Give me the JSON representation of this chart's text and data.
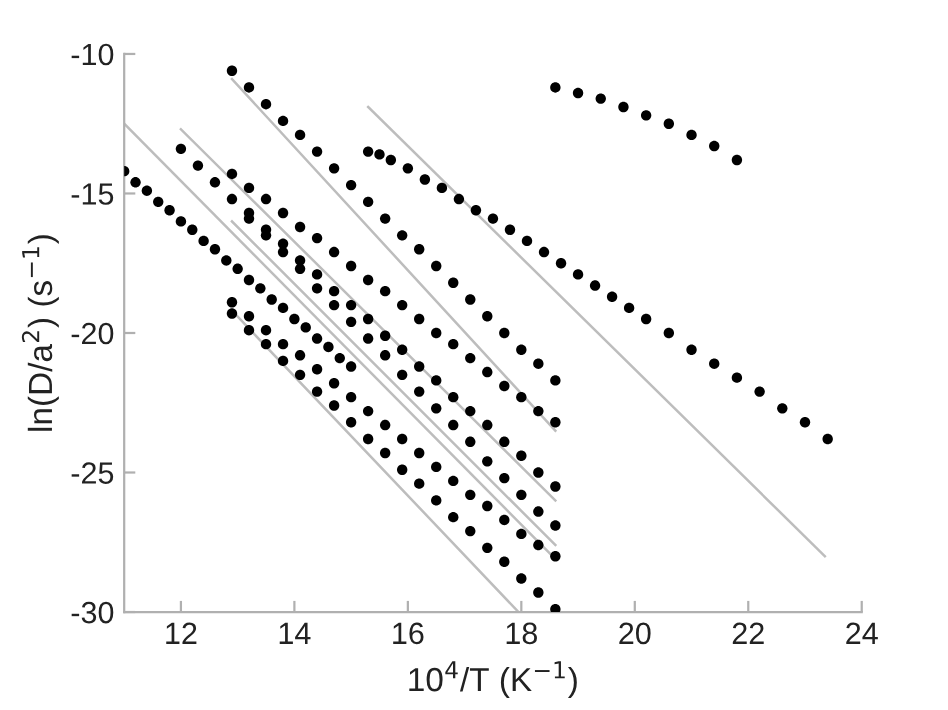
{
  "chart_data": {
    "type": "scatter",
    "xlabel": "10$^{4}$/T (K$^{−1}$)",
    "ylabel": "ln(D/a$^{2}$) (s$^{−1}$)",
    "xlim": [
      11,
      24
    ],
    "ylim": [
      -30,
      -10
    ],
    "xticks": [
      12,
      14,
      16,
      18,
      20,
      22,
      24
    ],
    "yticks": [
      -30,
      -25,
      -20,
      -15,
      -10
    ],
    "grid": false,
    "marker": "circle",
    "series": [
      {
        "type": "line",
        "marker": "none",
        "color": "#bdbdbd",
        "x": [
          11,
          18.6
        ],
        "values": [
          -12.5,
          -28.1
        ]
      },
      {
        "type": "line",
        "marker": "none",
        "color": "#bdbdbd",
        "x": [
          12,
          18.6
        ],
        "values": [
          -12.7,
          -26.0
        ]
      },
      {
        "type": "line",
        "marker": "none",
        "color": "#bdbdbd",
        "x": [
          12.9,
          18.6
        ],
        "values": [
          -10.9,
          -23.5
        ]
      },
      {
        "type": "line",
        "marker": "none",
        "color": "#bdbdbd",
        "x": [
          15.3,
          23.35
        ],
        "values": [
          -11.9,
          -28.0
        ]
      },
      {
        "type": "line",
        "marker": "none",
        "color": "#bdbdbd",
        "x": [
          12.9,
          17.95
        ],
        "values": [
          -19.2,
          -30.0
        ]
      },
      {
        "type": "line",
        "marker": "none",
        "color": "#bdbdbd",
        "x": [
          12.9,
          18.6
        ],
        "values": [
          -16.0,
          -27.6
        ]
      },
      {
        "color": "#000000",
        "x": [
          18.6,
          19.0,
          19.4,
          19.8,
          20.2,
          20.6,
          21.0,
          21.4,
          21.8
        ],
        "values": [
          -11.2,
          -11.4,
          -11.6,
          -11.9,
          -12.2,
          -12.5,
          -12.9,
          -13.3,
          -13.8
        ]
      },
      {
        "color": "#000000",
        "x": [
          15.3,
          15.5,
          15.7,
          16.0,
          16.3,
          16.6,
          16.9,
          17.2,
          17.5,
          17.8,
          18.1,
          18.4,
          18.7,
          19.0,
          19.3,
          19.6,
          19.9,
          20.2,
          20.6,
          21.0,
          21.4,
          21.8,
          22.2,
          22.6,
          23.0,
          23.4
        ],
        "values": [
          -13.5,
          -13.6,
          -13.8,
          -14.1,
          -14.5,
          -14.8,
          -15.2,
          -15.6,
          -15.9,
          -16.3,
          -16.7,
          -17.1,
          -17.5,
          -17.9,
          -18.3,
          -18.7,
          -19.1,
          -19.5,
          -20.0,
          -20.6,
          -21.1,
          -21.6,
          -22.1,
          -22.7,
          -23.2,
          -23.8
        ]
      },
      {
        "color": "#000000",
        "x": [
          12.9,
          13.2,
          13.5,
          13.8,
          14.1,
          14.4,
          14.7,
          15.0,
          15.3,
          15.6,
          15.9,
          16.2,
          16.5,
          16.8,
          17.1,
          17.4,
          17.7,
          18.0,
          18.3,
          18.6
        ],
        "values": [
          -10.6,
          -11.2,
          -11.8,
          -12.4,
          -12.9,
          -13.5,
          -14.1,
          -14.7,
          -15.3,
          -15.9,
          -16.5,
          -17.0,
          -17.6,
          -18.2,
          -18.8,
          -19.4,
          -20.0,
          -20.6,
          -21.1,
          -21.7
        ]
      },
      {
        "color": "#000000",
        "x": [
          12.9,
          13.2,
          13.5,
          13.8,
          14.1,
          14.4,
          14.7,
          15.0,
          15.3,
          15.6,
          15.9,
          16.2,
          16.5,
          16.8,
          17.1,
          17.4,
          17.7,
          18.0,
          18.3,
          18.6
        ],
        "values": [
          -14.3,
          -14.8,
          -15.2,
          -15.7,
          -16.2,
          -16.6,
          -17.1,
          -17.6,
          -18.1,
          -18.5,
          -19.0,
          -19.5,
          -20.0,
          -20.4,
          -20.9,
          -21.4,
          -21.9,
          -22.3,
          -22.8,
          -23.2
        ]
      },
      {
        "color": "#000000",
        "x": [
          12.9,
          13.2,
          13.5,
          13.8,
          14.1,
          14.4,
          14.7,
          15.0,
          15.3,
          15.6,
          15.9,
          16.2,
          16.5,
          16.8,
          17.1,
          17.4,
          17.7,
          18.0,
          18.3,
          18.6
        ],
        "values": [
          -15.2,
          -15.7,
          -16.3,
          -16.8,
          -17.4,
          -17.9,
          -18.5,
          -19.0,
          -19.5,
          -20.1,
          -20.6,
          -21.2,
          -21.7,
          -22.3,
          -22.8,
          -23.3,
          -23.9,
          -24.4,
          -25.0,
          -25.5
        ]
      },
      {
        "color": "#000000",
        "x": [
          12.0,
          12.3,
          12.6,
          12.9,
          13.2,
          13.5,
          13.8,
          14.1,
          14.4,
          14.7,
          15.0,
          15.3,
          15.6,
          15.9,
          16.2,
          16.5,
          16.8,
          17.1,
          17.4,
          17.7,
          18.0,
          18.3,
          18.6
        ],
        "values": [
          -13.4,
          -14.0,
          -14.6,
          null,
          -15.9,
          -16.5,
          -17.1,
          -17.7,
          -18.4,
          -19.0,
          -19.6,
          -20.2,
          -20.8,
          -21.5,
          -22.1,
          -22.7,
          -23.3,
          -23.9,
          -24.6,
          -25.2,
          -25.8,
          -26.4,
          -26.9
        ]
      },
      {
        "color": "#000000",
        "x": [
          12.9,
          13.2,
          13.5,
          13.8,
          14.1,
          14.4,
          14.7,
          15.0,
          15.3,
          15.6,
          15.9,
          16.2,
          16.5,
          16.8,
          17.1,
          17.4,
          17.7,
          18.0,
          18.3,
          18.6
        ],
        "values": [
          -18.9,
          -19.4,
          -19.9,
          -20.4,
          -20.8,
          -21.3,
          -21.8,
          -22.3,
          -22.8,
          -23.3,
          -23.8,
          -24.3,
          -24.8,
          -25.3,
          -25.8,
          -26.2,
          -26.7,
          -27.2,
          -27.6,
          -28.0
        ]
      },
      {
        "color": "#000000",
        "x": [
          12.9,
          13.2,
          13.5,
          13.8,
          14.1,
          14.4,
          14.7,
          15.0,
          15.3,
          15.6,
          15.9,
          16.2,
          16.5,
          16.8,
          17.1,
          17.4,
          17.7,
          18.0,
          18.3,
          18.6
        ],
        "values": [
          -19.3,
          -19.9,
          -20.4,
          -21.0,
          -21.5,
          -22.1,
          -22.6,
          -23.2,
          -23.8,
          -24.3,
          -24.9,
          -25.4,
          -26.0,
          -26.6,
          -27.1,
          -27.7,
          -28.2,
          -28.8,
          -29.3,
          -29.9
        ]
      },
      {
        "color": "#000000",
        "x": [
          11.0,
          11.2,
          11.4,
          11.6,
          11.8,
          12.0,
          12.2,
          12.4,
          12.6,
          12.8,
          13.0,
          13.2,
          13.4,
          13.6,
          13.8,
          14.0,
          14.2,
          14.4,
          14.6,
          14.8,
          15.0
        ],
        "values": [
          -14.2,
          -14.6,
          -14.9,
          -15.3,
          -15.6,
          -16.0,
          -16.3,
          -16.7,
          -17.0,
          -17.4,
          -17.7,
          -18.1,
          -18.4,
          -18.8,
          -19.1,
          -19.5,
          -19.8,
          -20.2,
          -20.5,
          -20.9,
          -21.2
        ]
      }
    ]
  }
}
